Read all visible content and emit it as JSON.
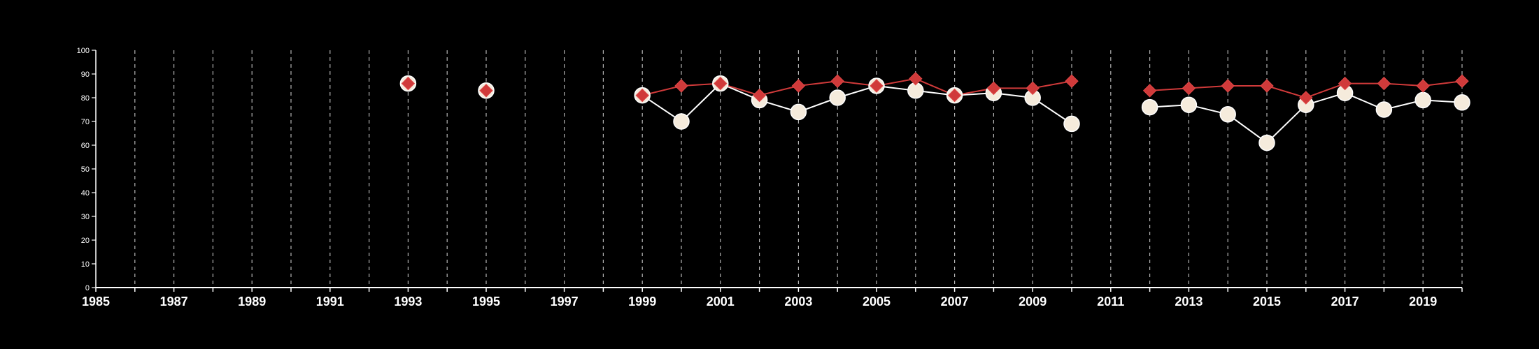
{
  "chart_data": {
    "type": "line",
    "title": "",
    "xlabel": "",
    "ylabel": "",
    "xlim": [
      1985,
      2020
    ],
    "ylim": [
      0,
      100
    ],
    "y_ticks": [
      0,
      10,
      20,
      30,
      40,
      50,
      60,
      70,
      80,
      90,
      100
    ],
    "x_tick_labels": [
      "1985",
      "1987",
      "1989",
      "1991",
      "1993",
      "1995",
      "1997",
      "1999",
      "2001",
      "2003",
      "2005",
      "2007",
      "2009",
      "2011",
      "2013",
      "2015",
      "2017",
      "2019"
    ],
    "vertical_gridlines": "dashed, every year",
    "series": [
      {
        "marker": "circle",
        "color": "#ffffff",
        "marker_fill": "#f5ebdc",
        "points": [
          {
            "x": 1993,
            "y": 86
          },
          {
            "x": 1995,
            "y": 83
          },
          {
            "x": 1999,
            "y": 81
          },
          {
            "x": 2000,
            "y": 70
          },
          {
            "x": 2001,
            "y": 86
          },
          {
            "x": 2002,
            "y": 79
          },
          {
            "x": 2003,
            "y": 74
          },
          {
            "x": 2004,
            "y": 80
          },
          {
            "x": 2005,
            "y": 85
          },
          {
            "x": 2006,
            "y": 83
          },
          {
            "x": 2007,
            "y": 81
          },
          {
            "x": 2008,
            "y": 82
          },
          {
            "x": 2009,
            "y": 80
          },
          {
            "x": 2010,
            "y": 69
          },
          {
            "x": 2012,
            "y": 76
          },
          {
            "x": 2013,
            "y": 77
          },
          {
            "x": 2014,
            "y": 73
          },
          {
            "x": 2015,
            "y": 61
          },
          {
            "x": 2016,
            "y": 77
          },
          {
            "x": 2017,
            "y": 82
          },
          {
            "x": 2018,
            "y": 75
          },
          {
            "x": 2019,
            "y": 79
          },
          {
            "x": 2020,
            "y": 78
          }
        ]
      },
      {
        "marker": "diamond",
        "color": "#d03a3a",
        "points": [
          {
            "x": 1993,
            "y": 86
          },
          {
            "x": 1995,
            "y": 83
          },
          {
            "x": 1999,
            "y": 81
          },
          {
            "x": 2000,
            "y": 85
          },
          {
            "x": 2001,
            "y": 86
          },
          {
            "x": 2002,
            "y": 81
          },
          {
            "x": 2003,
            "y": 85
          },
          {
            "x": 2004,
            "y": 87
          },
          {
            "x": 2005,
            "y": 85
          },
          {
            "x": 2006,
            "y": 88
          },
          {
            "x": 2007,
            "y": 81
          },
          {
            "x": 2008,
            "y": 84
          },
          {
            "x": 2009,
            "y": 84
          },
          {
            "x": 2010,
            "y": 87
          },
          {
            "x": 2012,
            "y": 83
          },
          {
            "x": 2013,
            "y": 84
          },
          {
            "x": 2014,
            "y": 85
          },
          {
            "x": 2015,
            "y": 85
          },
          {
            "x": 2016,
            "y": 80
          },
          {
            "x": 2017,
            "y": 86
          },
          {
            "x": 2018,
            "y": 86
          },
          {
            "x": 2019,
            "y": 85
          },
          {
            "x": 2020,
            "y": 87
          }
        ]
      }
    ]
  }
}
